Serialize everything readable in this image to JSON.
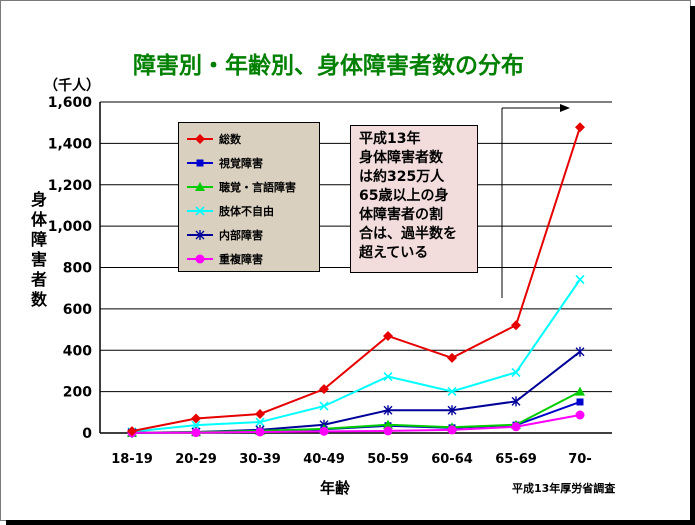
{
  "title": "障害別・年齢別、身体障害者数の分布",
  "unit": "（千人）",
  "ylabel": "身体障害者数",
  "xlabel": "年齢",
  "source": "平成13年厚労省調査",
  "annotation": "平成13年\n身体障害者数\nは約325万人\n65歳以上の身\n体障害者の割\n合は、過半数を\n超えている",
  "chart_data": {
    "type": "line",
    "categories": [
      "18-19",
      "20-29",
      "30-39",
      "40-49",
      "50-59",
      "60-64",
      "65-69",
      "70-"
    ],
    "ylim": [
      0,
      1600
    ],
    "yticks": [
      "0",
      "200",
      "400",
      "600",
      "800",
      "1,000",
      "1,200",
      "1,400",
      "1,600"
    ],
    "legend_position": "top-left",
    "grid": true,
    "series": [
      {
        "name": "総数",
        "color": "#e60000",
        "marker": "diamond",
        "values": [
          9,
          70,
          92,
          212,
          469,
          363,
          521,
          1478
        ]
      },
      {
        "name": "視覚障害",
        "color": "#0000cc",
        "marker": "square",
        "values": [
          1,
          3,
          8,
          18,
          35,
          25,
          38,
          150
        ]
      },
      {
        "name": "聴覚・言語障害",
        "color": "#00cc00",
        "marker": "triangle",
        "values": [
          1,
          4,
          10,
          20,
          40,
          28,
          40,
          200
        ]
      },
      {
        "name": "肢体不自由",
        "color": "#00ffff",
        "marker": "x",
        "values": [
          6,
          38,
          53,
          130,
          273,
          201,
          293,
          742
        ]
      },
      {
        "name": "内部障害",
        "color": "#000099",
        "marker": "star",
        "values": [
          1,
          5,
          15,
          40,
          110,
          110,
          153,
          393
        ]
      },
      {
        "name": "重複障害",
        "color": "#ff00ff",
        "marker": "circle",
        "values": [
          1,
          2,
          5,
          8,
          10,
          15,
          30,
          87
        ]
      }
    ]
  }
}
